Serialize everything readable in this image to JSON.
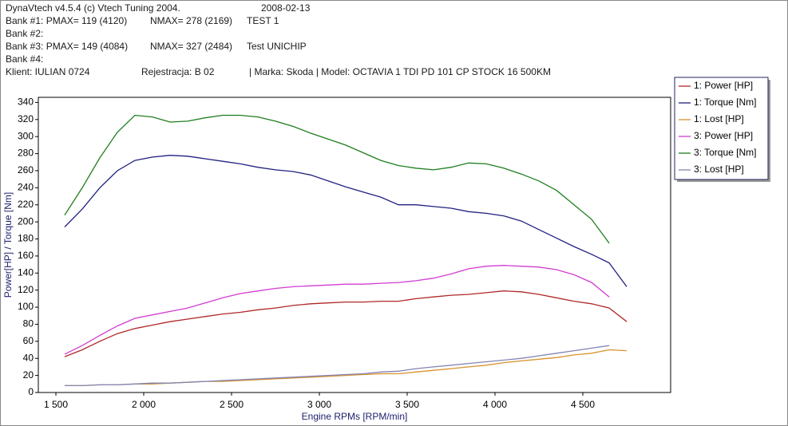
{
  "chart_data": {
    "type": "line",
    "annotations": [
      "DynaVtech v4.5.4 (c) Vtech Tuning 2004.",
      "2008-02-13",
      "Bank #1: PMAX= 119 (4120)",
      "NMAX= 278 (2169)",
      "TEST 1",
      "Bank #2:",
      "Bank #3: PMAX= 149 (4084)",
      "NMAX= 327 (2484)",
      "Test UNICHIP",
      "Bank #4:",
      "Klient: IULIAN 0724",
      "Rejestracja: B 02",
      "| Marka: Skoda | Model: OCTAVIA 1 TDI PD 101 CP STOCK 16 500KM"
    ],
    "x_label": "Engine RPMs [RPM/min]",
    "y_label": "Power[HP] / Torque [Nm]",
    "x": [
      1550,
      1650,
      1750,
      1850,
      1950,
      2050,
      2150,
      2250,
      2350,
      2450,
      2550,
      2650,
      2750,
      2850,
      2950,
      3050,
      3150,
      3250,
      3350,
      3450,
      3550,
      3650,
      3750,
      3850,
      3950,
      4050,
      4150,
      4250,
      4350,
      4450,
      4550,
      4650,
      4750
    ],
    "series": [
      {
        "name": "1: Power [HP]",
        "color": "#b02828",
        "values": [
          42,
          50,
          60,
          69,
          75,
          79,
          83,
          86,
          89,
          92,
          94,
          97,
          99,
          102,
          104,
          105,
          106,
          106,
          107,
          107,
          110,
          112,
          114,
          115,
          117,
          119,
          118,
          115,
          111,
          107,
          104,
          99,
          83
        ]
      },
      {
        "name": "1: Torque [Nm]",
        "color": "#202080",
        "values": [
          194,
          215,
          240,
          260,
          272,
          276,
          278,
          277,
          274,
          271,
          268,
          264,
          261,
          259,
          255,
          248,
          241,
          235,
          229,
          220,
          220,
          218,
          216,
          212,
          210,
          207,
          201,
          191,
          181,
          171,
          162,
          152,
          124
        ]
      },
      {
        "name": "1: Lost [HP]",
        "color": "#d8922e",
        "values": [
          8,
          8,
          9,
          9,
          10,
          10,
          11,
          12,
          13,
          13,
          14,
          15,
          16,
          17,
          18,
          19,
          20,
          21,
          22,
          22,
          24,
          26,
          28,
          30,
          32,
          35,
          37,
          39,
          41,
          44,
          46,
          50,
          49
        ]
      },
      {
        "name": "3: Power [HP]",
        "color": "#d23cd2",
        "values": [
          45,
          55,
          67,
          78,
          87,
          91,
          95,
          99,
          105,
          111,
          116,
          119,
          122,
          124,
          125,
          126,
          127,
          127,
          128,
          129,
          131,
          134,
          139,
          145,
          148,
          149,
          148,
          147,
          144,
          138,
          129,
          112,
          null
        ]
      },
      {
        "name": "3: Torque [Nm]",
        "color": "#1e7e1e",
        "values": [
          208,
          240,
          275,
          305,
          325,
          323,
          317,
          318,
          322,
          325,
          325,
          323,
          318,
          312,
          304,
          297,
          290,
          281,
          272,
          266,
          263,
          261,
          264,
          269,
          268,
          263,
          256,
          248,
          237,
          220,
          203,
          175,
          null
        ]
      },
      {
        "name": "3: Lost [HP]",
        "color": "#8484b4",
        "values": [
          8,
          8,
          9,
          9,
          10,
          11,
          11,
          12,
          13,
          14,
          15,
          16,
          17,
          18,
          19,
          20,
          21,
          22,
          24,
          25,
          28,
          30,
          32,
          34,
          36,
          38,
          40,
          43,
          46,
          49,
          52,
          55,
          null
        ]
      }
    ],
    "xlim": [
      1400,
      5000
    ],
    "xticks": [
      {
        "value": 1500,
        "label": "1 500"
      },
      {
        "value": 2000,
        "label": "2 000"
      },
      {
        "value": 2500,
        "label": "2 500"
      },
      {
        "value": 3000,
        "label": "3 000"
      },
      {
        "value": 3500,
        "label": "3 500"
      },
      {
        "value": 4000,
        "label": "4 000"
      },
      {
        "value": 4500,
        "label": "4 500"
      }
    ],
    "ylim": [
      0,
      346
    ],
    "yticks": [
      0,
      20,
      40,
      60,
      80,
      100,
      120,
      140,
      160,
      180,
      200,
      220,
      240,
      260,
      280,
      300,
      320,
      340
    ],
    "grid": false,
    "legend": "right"
  }
}
